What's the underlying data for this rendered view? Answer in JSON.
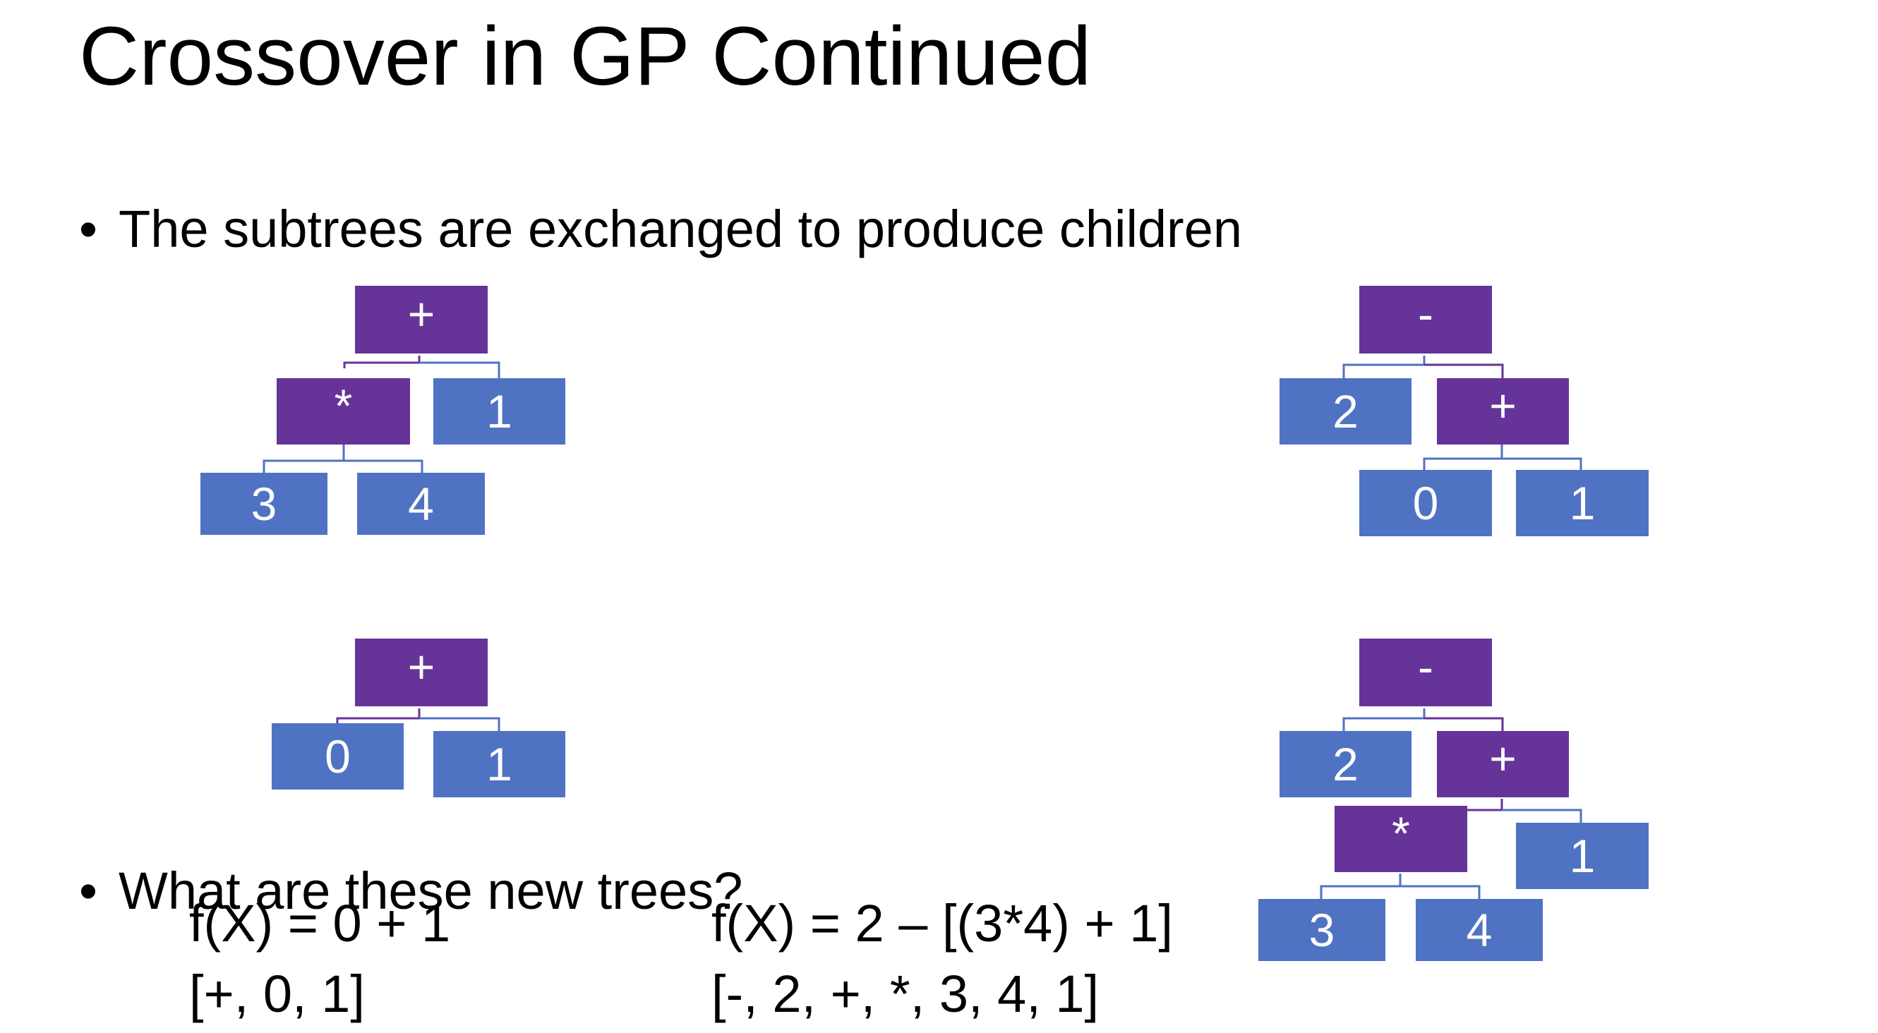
{
  "slide": {
    "title": "Crossover in GP Continued",
    "bullets": [
      "The subtrees are exchanged to produce children",
      "What are these new trees?"
    ],
    "bullet_marker": "•"
  },
  "diagram": {
    "colors": {
      "operator": "#663399",
      "leaf": "#4f72c3",
      "connector_operator": "#663399",
      "connector_leaf": "#4f72c3"
    },
    "trees": [
      {
        "name": "parent-1",
        "root": {
          "label": "+",
          "children": [
            {
              "label": "*",
              "children": [
                {
                  "label": "3"
                },
                {
                  "label": "4"
                }
              ]
            },
            {
              "label": "1"
            }
          ]
        }
      },
      {
        "name": "parent-2",
        "root": {
          "label": "-",
          "children": [
            {
              "label": "2"
            },
            {
              "label": "+",
              "children": [
                {
                  "label": "0"
                },
                {
                  "label": "1"
                }
              ]
            }
          ]
        }
      },
      {
        "name": "child-1",
        "root": {
          "label": "+",
          "children": [
            {
              "label": "0"
            },
            {
              "label": "1"
            }
          ]
        }
      },
      {
        "name": "child-2",
        "root": {
          "label": "-",
          "children": [
            {
              "label": "2"
            },
            {
              "label": "+",
              "children": [
                {
                  "label": "*",
                  "children": [
                    {
                      "label": "3"
                    },
                    {
                      "label": "4"
                    }
                  ]
                },
                {
                  "label": "1"
                }
              ]
            }
          ]
        }
      }
    ]
  },
  "answers": {
    "child_1": {
      "expression": "f(X) = 0 + 1",
      "prefix": "[+, 0, 1]"
    },
    "child_2": {
      "expression": "f(X) = 2 – [(3*4) + 1]",
      "prefix": "[-, 2, +, *, 3, 4, 1]"
    }
  }
}
